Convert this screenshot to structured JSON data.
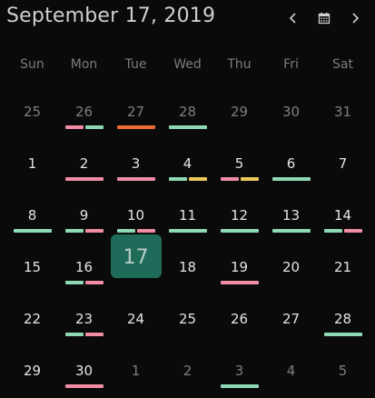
{
  "header": {
    "title": "September 17, 2019"
  },
  "colors": {
    "pink": "#ef8ca6",
    "green": "#8fd8b4",
    "orange": "#ee6b38",
    "yellow": "#ecc85a",
    "today_bg": "#1f6b5a"
  },
  "weekdays": [
    "Sun",
    "Mon",
    "Tue",
    "Wed",
    "Thu",
    "Fri",
    "Sat"
  ],
  "days": [
    {
      "label": "25",
      "other": true,
      "bars": []
    },
    {
      "label": "26",
      "other": true,
      "bars": [
        "pink",
        "green"
      ]
    },
    {
      "label": "27",
      "other": true,
      "bars": [
        "orange"
      ]
    },
    {
      "label": "28",
      "other": true,
      "bars": [
        "green"
      ]
    },
    {
      "label": "29",
      "other": true,
      "bars": []
    },
    {
      "label": "30",
      "other": true,
      "bars": []
    },
    {
      "label": "31",
      "other": true,
      "bars": []
    },
    {
      "label": "1",
      "other": false,
      "bars": []
    },
    {
      "label": "2",
      "other": false,
      "bars": [
        "pink"
      ]
    },
    {
      "label": "3",
      "other": false,
      "bars": [
        "pink"
      ]
    },
    {
      "label": "4",
      "other": false,
      "bars": [
        "green",
        "yellow"
      ]
    },
    {
      "label": "5",
      "other": false,
      "bars": [
        "pink",
        "yellow"
      ]
    },
    {
      "label": "6",
      "other": false,
      "bars": [
        "green"
      ]
    },
    {
      "label": "7",
      "other": false,
      "bars": []
    },
    {
      "label": "8",
      "other": false,
      "bars": [
        "green"
      ]
    },
    {
      "label": "9",
      "other": false,
      "bars": [
        "green",
        "pink"
      ]
    },
    {
      "label": "10",
      "other": false,
      "bars": [
        "green",
        "pink"
      ]
    },
    {
      "label": "11",
      "other": false,
      "bars": [
        "green"
      ]
    },
    {
      "label": "12",
      "other": false,
      "bars": [
        "green"
      ]
    },
    {
      "label": "13",
      "other": false,
      "bars": [
        "green"
      ]
    },
    {
      "label": "14",
      "other": false,
      "bars": [
        "green",
        "pink"
      ]
    },
    {
      "label": "15",
      "other": false,
      "bars": []
    },
    {
      "label": "16",
      "other": false,
      "bars": [
        "green",
        "pink"
      ]
    },
    {
      "label": "17",
      "other": false,
      "today": true,
      "bars": []
    },
    {
      "label": "18",
      "other": false,
      "bars": []
    },
    {
      "label": "19",
      "other": false,
      "bars": [
        "pink"
      ]
    },
    {
      "label": "20",
      "other": false,
      "bars": []
    },
    {
      "label": "21",
      "other": false,
      "bars": []
    },
    {
      "label": "22",
      "other": false,
      "bars": []
    },
    {
      "label": "23",
      "other": false,
      "bars": [
        "green",
        "pink"
      ]
    },
    {
      "label": "24",
      "other": false,
      "bars": []
    },
    {
      "label": "25",
      "other": false,
      "bars": []
    },
    {
      "label": "26",
      "other": false,
      "bars": []
    },
    {
      "label": "27",
      "other": false,
      "bars": []
    },
    {
      "label": "28",
      "other": false,
      "bars": [
        "green"
      ]
    },
    {
      "label": "29",
      "other": false,
      "bars": []
    },
    {
      "label": "30",
      "other": false,
      "bars": [
        "pink"
      ]
    },
    {
      "label": "1",
      "other": true,
      "bars": []
    },
    {
      "label": "2",
      "other": true,
      "bars": []
    },
    {
      "label": "3",
      "other": true,
      "bars": [
        "green"
      ]
    },
    {
      "label": "4",
      "other": true,
      "bars": []
    },
    {
      "label": "5",
      "other": true,
      "bars": []
    }
  ]
}
